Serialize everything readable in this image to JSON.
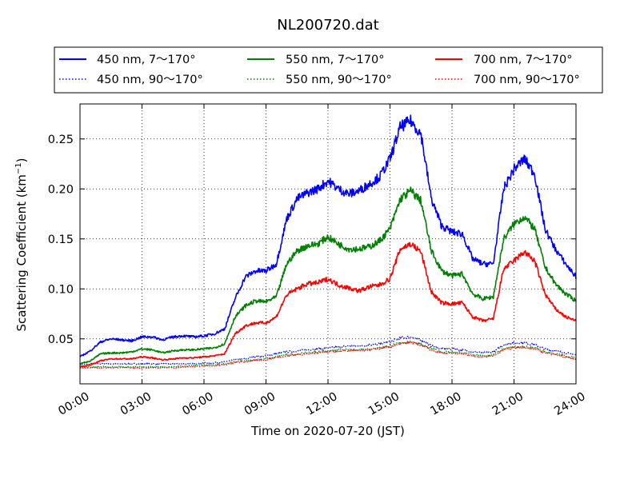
{
  "chart_data": {
    "type": "line",
    "title": "NL200720.dat",
    "xlabel": "Time on 2020-07-20 (JST)",
    "ylabel_main": "Scattering Coefficient (km",
    "ylabel_sup": "−1",
    "ylabel_close": ")",
    "xlim": [
      0,
      24
    ],
    "ylim": [
      0.005,
      0.285
    ],
    "x_ticks": [
      0,
      3,
      6,
      9,
      12,
      15,
      18,
      21,
      24
    ],
    "x_tick_labels": [
      "00:00",
      "03:00",
      "06:00",
      "09:00",
      "12:00",
      "15:00",
      "18:00",
      "21:00",
      "24:00"
    ],
    "y_ticks": [
      0.05,
      0.1,
      0.15,
      0.2,
      0.25
    ],
    "y_tick_labels": [
      "0.05",
      "0.10",
      "0.15",
      "0.20",
      "0.25"
    ],
    "grid": true,
    "legend_position": "above plot, three columns",
    "x_hours": [
      0,
      0.5,
      1,
      1.5,
      2,
      2.5,
      3,
      3.5,
      4,
      4.5,
      5,
      5.5,
      6,
      6.5,
      7,
      7.5,
      8,
      8.5,
      9,
      9.5,
      10,
      10.5,
      11,
      11.5,
      12,
      12.5,
      13,
      13.5,
      14,
      14.5,
      15,
      15.5,
      16,
      16.5,
      17,
      17.5,
      18,
      18.5,
      19,
      19.5,
      20,
      20.5,
      21,
      21.5,
      22,
      22.5,
      23,
      23.5,
      24
    ],
    "series": [
      {
        "name": "450 nm, 7～170°",
        "color": "#0000ff",
        "style": "solid",
        "values": [
          0.032,
          0.038,
          0.047,
          0.05,
          0.049,
          0.048,
          0.052,
          0.052,
          0.049,
          0.052,
          0.053,
          0.052,
          0.053,
          0.055,
          0.06,
          0.09,
          0.112,
          0.118,
          0.118,
          0.125,
          0.17,
          0.19,
          0.196,
          0.2,
          0.208,
          0.2,
          0.195,
          0.198,
          0.205,
          0.212,
          0.23,
          0.262,
          0.268,
          0.255,
          0.19,
          0.163,
          0.157,
          0.155,
          0.13,
          0.125,
          0.125,
          0.2,
          0.22,
          0.23,
          0.215,
          0.16,
          0.14,
          0.125,
          0.112
        ]
      },
      {
        "name": "550 nm, 7～170°",
        "color": "#008000",
        "style": "solid",
        "values": [
          0.025,
          0.028,
          0.035,
          0.036,
          0.036,
          0.037,
          0.04,
          0.039,
          0.036,
          0.038,
          0.039,
          0.039,
          0.04,
          0.041,
          0.045,
          0.072,
          0.083,
          0.088,
          0.087,
          0.092,
          0.125,
          0.138,
          0.143,
          0.145,
          0.152,
          0.145,
          0.14,
          0.14,
          0.142,
          0.148,
          0.16,
          0.19,
          0.198,
          0.188,
          0.138,
          0.118,
          0.113,
          0.115,
          0.095,
          0.09,
          0.092,
          0.15,
          0.165,
          0.172,
          0.16,
          0.122,
          0.105,
          0.095,
          0.088
        ]
      },
      {
        "name": "700 nm, 7～170°",
        "color": "#ff0000",
        "style": "solid",
        "values": [
          0.022,
          0.024,
          0.028,
          0.03,
          0.03,
          0.03,
          0.032,
          0.031,
          0.029,
          0.03,
          0.031,
          0.031,
          0.032,
          0.033,
          0.035,
          0.055,
          0.063,
          0.066,
          0.066,
          0.072,
          0.094,
          0.1,
          0.105,
          0.106,
          0.11,
          0.104,
          0.101,
          0.098,
          0.102,
          0.104,
          0.11,
          0.14,
          0.145,
          0.137,
          0.097,
          0.086,
          0.085,
          0.086,
          0.072,
          0.068,
          0.07,
          0.12,
          0.128,
          0.137,
          0.128,
          0.095,
          0.08,
          0.072,
          0.068
        ]
      },
      {
        "name": "450 nm, 90～170°",
        "color": "#0000ff",
        "style": "dotted",
        "values": [
          0.024,
          0.025,
          0.025,
          0.025,
          0.025,
          0.025,
          0.025,
          0.025,
          0.025,
          0.025,
          0.025,
          0.025,
          0.026,
          0.026,
          0.027,
          0.029,
          0.03,
          0.032,
          0.033,
          0.035,
          0.037,
          0.038,
          0.039,
          0.04,
          0.041,
          0.042,
          0.043,
          0.043,
          0.044,
          0.045,
          0.047,
          0.051,
          0.052,
          0.049,
          0.043,
          0.04,
          0.04,
          0.039,
          0.037,
          0.036,
          0.037,
          0.044,
          0.046,
          0.046,
          0.044,
          0.04,
          0.038,
          0.036,
          0.034
        ]
      },
      {
        "name": "550 nm, 90～170°",
        "color": "#008000",
        "style": "dotted",
        "values": [
          0.022,
          0.022,
          0.022,
          0.022,
          0.022,
          0.022,
          0.022,
          0.022,
          0.022,
          0.022,
          0.023,
          0.023,
          0.024,
          0.024,
          0.025,
          0.027,
          0.028,
          0.029,
          0.03,
          0.032,
          0.034,
          0.035,
          0.036,
          0.037,
          0.038,
          0.039,
          0.039,
          0.039,
          0.04,
          0.041,
          0.043,
          0.046,
          0.047,
          0.045,
          0.04,
          0.037,
          0.037,
          0.036,
          0.034,
          0.033,
          0.034,
          0.04,
          0.042,
          0.042,
          0.041,
          0.037,
          0.035,
          0.033,
          0.031
        ]
      },
      {
        "name": "700 nm, 90～170°",
        "color": "#ff0000",
        "style": "dotted",
        "values": [
          0.021,
          0.021,
          0.021,
          0.021,
          0.021,
          0.021,
          0.021,
          0.021,
          0.021,
          0.021,
          0.022,
          0.022,
          0.023,
          0.023,
          0.024,
          0.026,
          0.027,
          0.028,
          0.029,
          0.031,
          0.033,
          0.034,
          0.035,
          0.036,
          0.037,
          0.038,
          0.038,
          0.038,
          0.039,
          0.04,
          0.042,
          0.045,
          0.046,
          0.044,
          0.039,
          0.036,
          0.036,
          0.035,
          0.033,
          0.032,
          0.033,
          0.039,
          0.041,
          0.041,
          0.04,
          0.036,
          0.034,
          0.032,
          0.03
        ]
      }
    ]
  }
}
